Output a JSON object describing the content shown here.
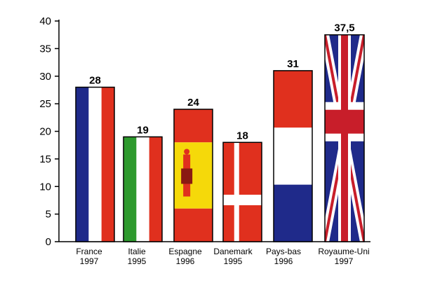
{
  "chart_data": {
    "type": "bar",
    "title": "",
    "xlabel": "",
    "ylabel": "",
    "ylim": [
      0,
      40
    ],
    "yticks": [
      0,
      5,
      10,
      15,
      20,
      25,
      30,
      35,
      40
    ],
    "grid": false,
    "categories": [
      {
        "name": "France",
        "year": "1997",
        "flag": "france"
      },
      {
        "name": "Italie",
        "year": "1995",
        "flag": "italy"
      },
      {
        "name": "Espagne",
        "year": "1996",
        "flag": "spain"
      },
      {
        "name": "Danemark",
        "year": "1995",
        "flag": "denmark"
      },
      {
        "name": "Pays-bas",
        "year": "1996",
        "flag": "netherlands"
      },
      {
        "name": "Royaume-Uni",
        "year": "1997",
        "flag": "united-kingdom"
      }
    ],
    "values": [
      28,
      19,
      24,
      18,
      31,
      37.5
    ],
    "value_labels": [
      "28",
      "19",
      "24",
      "18",
      "31",
      "37,5"
    ],
    "colors": {
      "blue": "#1f2a8a",
      "white": "#ffffff",
      "red": "#e0301e",
      "green": "#2e9a2e",
      "yellow": "#f5d90a",
      "uk_red": "#c81e2a",
      "axis": "#000000"
    }
  }
}
